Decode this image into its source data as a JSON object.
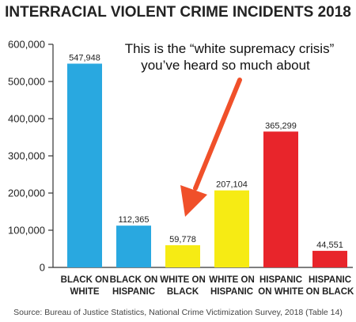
{
  "chart_data": {
    "type": "bar",
    "title": "INTERRACIAL VIOLENT CRIME INCIDENTS 2018",
    "annotation": {
      "lines": [
        "This is the “white supremacy crisis”",
        "you’ve heard so much about"
      ],
      "points_to": "WHITE ON BLACK"
    },
    "categories": [
      [
        "BLACK ON",
        "WHITE"
      ],
      [
        "BLACK ON",
        "HISPANIC"
      ],
      [
        "WHITE ON",
        "BLACK"
      ],
      [
        "WHITE ON",
        "HISPANIC"
      ],
      [
        "HISPANIC",
        "ON WHITE"
      ],
      [
        "HISPANIC",
        "ON BLACK"
      ]
    ],
    "values": [
      547948,
      112365,
      59778,
      207104,
      365299,
      44551
    ],
    "value_labels": [
      "547,948",
      "112,365",
      "59,778",
      "207,104",
      "365,299",
      "44,551"
    ],
    "bar_colors": [
      "#29a8e0",
      "#29a8e0",
      "#f6eb14",
      "#f6eb14",
      "#e8252b",
      "#e8252b"
    ],
    "ylim": [
      0,
      600000
    ],
    "yticks": [
      0,
      100000,
      200000,
      300000,
      400000,
      500000,
      600000
    ],
    "ytick_labels": [
      "0",
      "100,000",
      "200,000",
      "300,000",
      "400,000",
      "500,000",
      "600,000"
    ],
    "grid": false,
    "legend": "none",
    "source": "Source: Bureau of Justice Statistics, National Crime Victimization Survey, 2018 (Table 14)",
    "colors": {
      "arrow": "#f0502a",
      "axis": "#333333"
    }
  }
}
